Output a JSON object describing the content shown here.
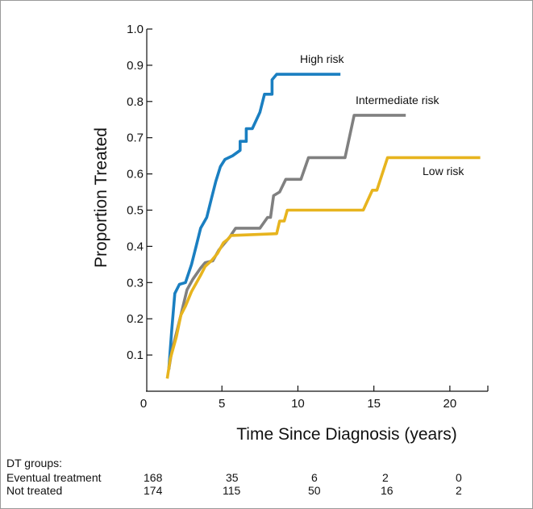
{
  "chart_data": {
    "type": "line",
    "xlabel": "Time Since Diagnosis (years)",
    "ylabel": "Proportion Treated",
    "xlim": [
      0,
      22.5
    ],
    "ylim": [
      0,
      1.0
    ],
    "x_ticks": [
      0,
      5,
      10,
      15,
      20
    ],
    "y_ticks": [
      0.1,
      0.2,
      0.3,
      0.4,
      0.5,
      0.6,
      0.7,
      0.8,
      0.9,
      1.0
    ],
    "x_tick_labels": [
      "0",
      "5",
      "10",
      "15",
      "20"
    ],
    "y_tick_labels": [
      "0.1",
      "0.2",
      "0.3",
      "0.4",
      "0.5",
      "0.6",
      "0.7",
      "0.8",
      "0.9",
      "1.0"
    ],
    "series": [
      {
        "name": "High risk",
        "color": "#1a7fc1",
        "points": [
          [
            1.5,
            0.06
          ],
          [
            1.7,
            0.17
          ],
          [
            1.9,
            0.27
          ],
          [
            2.2,
            0.295
          ],
          [
            2.6,
            0.3
          ],
          [
            3.0,
            0.35
          ],
          [
            3.3,
            0.4
          ],
          [
            3.6,
            0.45
          ],
          [
            4.0,
            0.48
          ],
          [
            4.3,
            0.53
          ],
          [
            4.6,
            0.58
          ],
          [
            4.9,
            0.62
          ],
          [
            5.2,
            0.64
          ],
          [
            5.7,
            0.65
          ],
          [
            6.2,
            0.665
          ],
          [
            6.2,
            0.69
          ],
          [
            6.6,
            0.69
          ],
          [
            6.6,
            0.725
          ],
          [
            7.0,
            0.725
          ],
          [
            7.5,
            0.77
          ],
          [
            7.8,
            0.82
          ],
          [
            8.3,
            0.82
          ],
          [
            8.3,
            0.86
          ],
          [
            8.6,
            0.875
          ],
          [
            11.3,
            0.875
          ],
          [
            12.8,
            0.875
          ]
        ]
      },
      {
        "name": "Intermediate risk",
        "color": "#808080",
        "points": [
          [
            1.5,
            0.06
          ],
          [
            1.7,
            0.11
          ],
          [
            2.0,
            0.16
          ],
          [
            2.3,
            0.21
          ],
          [
            2.7,
            0.28
          ],
          [
            3.1,
            0.31
          ],
          [
            3.6,
            0.34
          ],
          [
            3.9,
            0.355
          ],
          [
            4.4,
            0.36
          ],
          [
            4.8,
            0.39
          ],
          [
            5.2,
            0.41
          ],
          [
            5.5,
            0.425
          ],
          [
            5.9,
            0.45
          ],
          [
            7.5,
            0.45
          ],
          [
            8.0,
            0.48
          ],
          [
            8.2,
            0.48
          ],
          [
            8.4,
            0.54
          ],
          [
            8.8,
            0.55
          ],
          [
            9.2,
            0.585
          ],
          [
            10.2,
            0.585
          ],
          [
            10.7,
            0.645
          ],
          [
            13.1,
            0.645
          ],
          [
            13.7,
            0.762
          ],
          [
            17.1,
            0.762
          ]
        ]
      },
      {
        "name": "Low risk",
        "color": "#e7b41e",
        "points": [
          [
            1.4,
            0.035
          ],
          [
            1.6,
            0.09
          ],
          [
            2.0,
            0.15
          ],
          [
            2.3,
            0.21
          ],
          [
            2.6,
            0.235
          ],
          [
            3.0,
            0.275
          ],
          [
            3.6,
            0.32
          ],
          [
            3.9,
            0.345
          ],
          [
            4.3,
            0.36
          ],
          [
            4.7,
            0.38
          ],
          [
            5.1,
            0.41
          ],
          [
            5.4,
            0.42
          ],
          [
            5.6,
            0.43
          ],
          [
            8.6,
            0.435
          ],
          [
            8.8,
            0.47
          ],
          [
            9.1,
            0.47
          ],
          [
            9.3,
            0.5
          ],
          [
            14.3,
            0.5
          ],
          [
            14.9,
            0.555
          ],
          [
            15.2,
            0.555
          ],
          [
            15.9,
            0.645
          ],
          [
            22.0,
            0.645
          ]
        ]
      }
    ],
    "series_label_text": [
      "High risk",
      "Intermediate risk",
      "Low risk"
    ]
  },
  "risk_table": {
    "heading": "DT groups:",
    "rows": [
      {
        "label": "Eventual treatment",
        "values": [
          "168",
          "35",
          "6",
          "2",
          "0"
        ]
      },
      {
        "label": "Not treated",
        "values": [
          "174",
          "115",
          "50",
          "16",
          "2"
        ]
      }
    ]
  }
}
